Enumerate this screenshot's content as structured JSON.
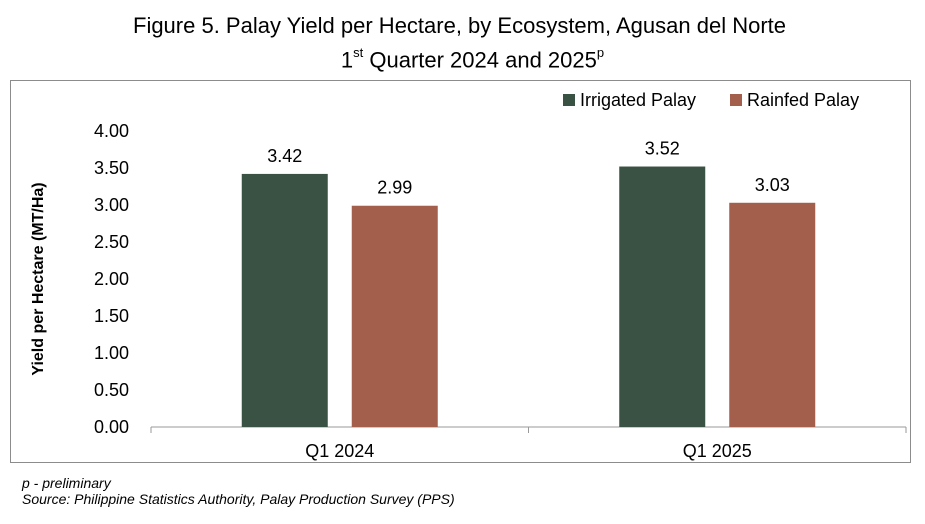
{
  "title_main": "Figure 5. Palay Yield per Hectare, by Ecosystem, Agusan del Norte",
  "title_line2": {
    "ord_num": "1",
    "ord_sup": "st",
    "text": " Quarter 2024 and 2025",
    "sup": "p"
  },
  "chart_data": {
    "type": "bar",
    "categories": [
      "Q1 2024",
      "Q1 2025"
    ],
    "series": [
      {
        "name": "Irrigated Palay",
        "values": [
          3.42,
          3.52
        ],
        "color": "#3a5244"
      },
      {
        "name": "Rainfed Palay",
        "values": [
          2.99,
          3.03
        ],
        "color": "#a45e4c"
      }
    ],
    "ylabel": "Yield per Hectare (MT/Ha)",
    "ylim": [
      0,
      4
    ],
    "yticks": [
      "0.00",
      "0.50",
      "1.00",
      "1.50",
      "2.00",
      "2.50",
      "3.00",
      "3.50",
      "4.00"
    ],
    "grid": false,
    "legend": "top-right"
  },
  "notes": {
    "preliminary": "p - preliminary",
    "source": "Source: Philippine Statistics Authority, Palay Production Survey (PPS)"
  }
}
